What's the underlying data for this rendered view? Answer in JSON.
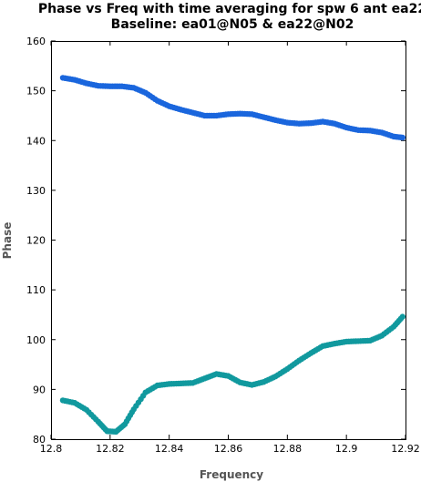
{
  "chart_data": {
    "type": "scatter",
    "title": "Phase vs Freq with time averaging for spw 6 ant ea22",
    "subtitle": "Baseline: ea01@N05 & ea22@N02",
    "xlabel": "Frequency",
    "ylabel": "Phase",
    "xlim": [
      12.8,
      12.92
    ],
    "ylim": [
      80,
      160
    ],
    "x_ticks": [
      12.8,
      12.82,
      12.84,
      12.86,
      12.88,
      12.9,
      12.92
    ],
    "x_tick_labels": [
      "12.8",
      "12.82",
      "12.84",
      "12.86",
      "12.88",
      "12.9",
      "12.92"
    ],
    "y_ticks": [
      80,
      90,
      100,
      110,
      120,
      130,
      140,
      150,
      160
    ],
    "y_tick_labels": [
      "80",
      "90",
      "100",
      "110",
      "120",
      "130",
      "140",
      "150",
      "160"
    ],
    "grid": false,
    "legend": "none",
    "series": [
      {
        "color": "#1a66dd",
        "points": [
          [
            12.804,
            152.6
          ],
          [
            12.808,
            152.2
          ],
          [
            12.812,
            151.5
          ],
          [
            12.816,
            151.0
          ],
          [
            12.82,
            150.9
          ],
          [
            12.824,
            150.9
          ],
          [
            12.828,
            150.6
          ],
          [
            12.832,
            149.6
          ],
          [
            12.836,
            148.0
          ],
          [
            12.84,
            146.9
          ],
          [
            12.844,
            146.2
          ],
          [
            12.848,
            145.6
          ],
          [
            12.852,
            145.0
          ],
          [
            12.856,
            145.0
          ],
          [
            12.86,
            145.3
          ],
          [
            12.864,
            145.4
          ],
          [
            12.868,
            145.3
          ],
          [
            12.872,
            144.7
          ],
          [
            12.876,
            144.1
          ],
          [
            12.88,
            143.6
          ],
          [
            12.884,
            143.4
          ],
          [
            12.888,
            143.5
          ],
          [
            12.892,
            143.8
          ],
          [
            12.896,
            143.4
          ],
          [
            12.9,
            142.6
          ],
          [
            12.904,
            142.1
          ],
          [
            12.908,
            142.0
          ],
          [
            12.912,
            141.6
          ],
          [
            12.916,
            140.8
          ],
          [
            12.919,
            140.6
          ]
        ]
      },
      {
        "color": "#11999e",
        "points": [
          [
            12.804,
            87.8
          ],
          [
            12.808,
            87.3
          ],
          [
            12.812,
            85.9
          ],
          [
            12.816,
            83.5
          ],
          [
            12.819,
            81.6
          ],
          [
            12.822,
            81.5
          ],
          [
            12.825,
            83.0
          ],
          [
            12.828,
            86.0
          ],
          [
            12.832,
            89.4
          ],
          [
            12.836,
            90.8
          ],
          [
            12.84,
            91.1
          ],
          [
            12.844,
            91.2
          ],
          [
            12.848,
            91.3
          ],
          [
            12.852,
            92.2
          ],
          [
            12.856,
            93.1
          ],
          [
            12.86,
            92.7
          ],
          [
            12.864,
            91.4
          ],
          [
            12.868,
            90.9
          ],
          [
            12.872,
            91.5
          ],
          [
            12.876,
            92.6
          ],
          [
            12.88,
            94.1
          ],
          [
            12.884,
            95.8
          ],
          [
            12.888,
            97.3
          ],
          [
            12.892,
            98.7
          ],
          [
            12.896,
            99.2
          ],
          [
            12.9,
            99.6
          ],
          [
            12.904,
            99.7
          ],
          [
            12.908,
            99.8
          ],
          [
            12.912,
            100.8
          ],
          [
            12.916,
            102.6
          ],
          [
            12.919,
            104.6
          ]
        ]
      }
    ]
  }
}
